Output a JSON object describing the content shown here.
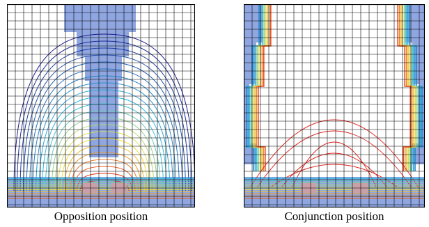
{
  "figure": {
    "panels": [
      {
        "caption": "Opposition position"
      },
      {
        "caption": "Conjunction position"
      }
    ]
  },
  "colors": {
    "grid": "#000000",
    "field_fill": "#8fa6e0",
    "contour_low": "#1b1b8f",
    "contour_mid": "#2bbfe8",
    "contour_high": "#f5e43a",
    "contour_peak": "#e0201a",
    "conductor": "#c9a0a8"
  }
}
